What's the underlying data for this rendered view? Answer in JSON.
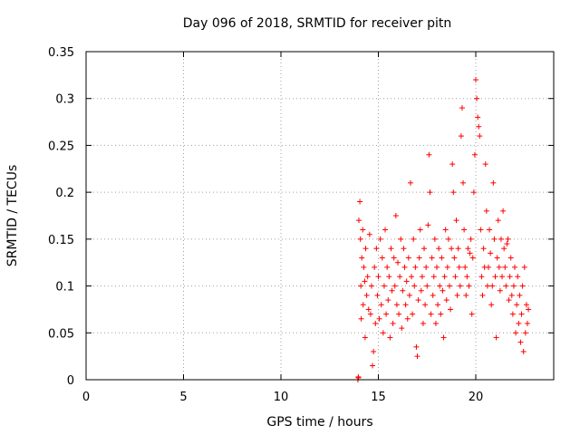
{
  "chart_data": {
    "type": "scatter",
    "title": "Day 096 of 2018, SRMTID for receiver pitn",
    "xlabel": "GPS time / hours",
    "ylabel": "SRMTID / TECUs",
    "xlim": [
      0,
      24
    ],
    "ylim": [
      0,
      0.35
    ],
    "xticks": [
      0,
      5,
      10,
      15,
      20
    ],
    "yticks": [
      0,
      0.05,
      0.1,
      0.15,
      0.2,
      0.25,
      0.3,
      0.35
    ],
    "xtick_labels": [
      "0",
      "5",
      "10",
      "15",
      "20"
    ],
    "ytick_labels": [
      "0",
      "0.05",
      "0.1",
      "0.15",
      "0.2",
      "0.25",
      "0.3",
      "0.35"
    ],
    "grid": true,
    "marker": "+",
    "color": "#ff0000",
    "series": [
      {
        "name": "SRMTID",
        "x": [
          13.95,
          13.97,
          13.98,
          14.0,
          14.05,
          14.08,
          14.1,
          14.12,
          14.15,
          14.2,
          14.22,
          14.25,
          14.3,
          14.32,
          14.35,
          14.4,
          14.45,
          14.5,
          14.55,
          14.6,
          14.65,
          14.7,
          14.75,
          14.8,
          14.85,
          14.9,
          14.95,
          15.0,
          15.05,
          15.1,
          15.15,
          15.2,
          15.25,
          15.3,
          15.35,
          15.4,
          15.45,
          15.5,
          15.55,
          15.6,
          15.65,
          15.7,
          15.75,
          15.8,
          15.85,
          15.9,
          15.95,
          16.0,
          16.05,
          16.1,
          16.15,
          16.2,
          16.25,
          16.3,
          16.35,
          16.4,
          16.45,
          16.5,
          16.55,
          16.6,
          16.65,
          16.7,
          16.75,
          16.8,
          16.85,
          16.9,
          16.95,
          17.0,
          17.05,
          17.1,
          17.15,
          17.2,
          17.25,
          17.3,
          17.35,
          17.4,
          17.45,
          17.5,
          17.55,
          17.6,
          17.65,
          17.7,
          17.75,
          17.8,
          17.85,
          17.9,
          17.95,
          18.0,
          18.05,
          18.1,
          18.15,
          18.2,
          18.25,
          18.3,
          18.35,
          18.4,
          18.45,
          18.5,
          18.55,
          18.6,
          18.65,
          18.7,
          18.75,
          18.8,
          18.85,
          18.9,
          18.95,
          19.0,
          19.05,
          19.1,
          19.15,
          19.2,
          19.25,
          19.3,
          19.35,
          19.4,
          19.45,
          19.5,
          19.55,
          19.6,
          19.65,
          19.7,
          19.75,
          19.8,
          19.85,
          19.9,
          19.95,
          20.0,
          20.05,
          20.1,
          20.15,
          20.2,
          20.25,
          20.3,
          20.35,
          20.4,
          20.45,
          20.5,
          20.55,
          20.6,
          20.65,
          20.7,
          20.75,
          20.8,
          20.85,
          20.9,
          20.95,
          21.0,
          21.05,
          21.1,
          21.15,
          21.2,
          21.25,
          21.3,
          21.35,
          21.4,
          21.45,
          21.5,
          21.55,
          21.6,
          21.65,
          21.7,
          21.75,
          21.8,
          21.85,
          21.9,
          21.95,
          22.0,
          22.05,
          22.1,
          22.15,
          22.2,
          22.25,
          22.3,
          22.35,
          22.4,
          22.45,
          22.5,
          22.55,
          22.6,
          22.65,
          22.7
        ],
        "y": [
          0.0,
          0.003,
          0.002,
          0.17,
          0.19,
          0.15,
          0.1,
          0.065,
          0.13,
          0.16,
          0.08,
          0.12,
          0.105,
          0.045,
          0.14,
          0.09,
          0.11,
          0.075,
          0.155,
          0.07,
          0.1,
          0.015,
          0.03,
          0.12,
          0.06,
          0.14,
          0.09,
          0.11,
          0.065,
          0.15,
          0.08,
          0.13,
          0.05,
          0.1,
          0.16,
          0.07,
          0.12,
          0.085,
          0.11,
          0.045,
          0.14,
          0.095,
          0.06,
          0.13,
          0.1,
          0.175,
          0.08,
          0.125,
          0.07,
          0.11,
          0.15,
          0.055,
          0.095,
          0.14,
          0.12,
          0.08,
          0.105,
          0.065,
          0.13,
          0.09,
          0.21,
          0.11,
          0.07,
          0.15,
          0.1,
          0.12,
          0.035,
          0.025,
          0.085,
          0.13,
          0.16,
          0.095,
          0.11,
          0.06,
          0.14,
          0.08,
          0.12,
          0.1,
          0.165,
          0.24,
          0.2,
          0.07,
          0.13,
          0.09,
          0.11,
          0.15,
          0.06,
          0.12,
          0.08,
          0.14,
          0.1,
          0.07,
          0.13,
          0.095,
          0.045,
          0.11,
          0.16,
          0.085,
          0.12,
          0.15,
          0.1,
          0.075,
          0.14,
          0.23,
          0.2,
          0.13,
          0.11,
          0.17,
          0.09,
          0.14,
          0.12,
          0.1,
          0.26,
          0.29,
          0.21,
          0.16,
          0.12,
          0.09,
          0.11,
          0.14,
          0.1,
          0.135,
          0.15,
          0.07,
          0.13,
          0.2,
          0.24,
          0.32,
          0.3,
          0.28,
          0.27,
          0.26,
          0.16,
          0.11,
          0.09,
          0.14,
          0.12,
          0.23,
          0.18,
          0.1,
          0.12,
          0.16,
          0.135,
          0.08,
          0.1,
          0.21,
          0.15,
          0.11,
          0.045,
          0.13,
          0.17,
          0.12,
          0.095,
          0.15,
          0.11,
          0.18,
          0.14,
          0.12,
          0.1,
          0.145,
          0.15,
          0.085,
          0.11,
          0.13,
          0.09,
          0.07,
          0.1,
          0.12,
          0.05,
          0.08,
          0.11,
          0.06,
          0.09,
          0.04,
          0.07,
          0.1,
          0.03,
          0.12,
          0.05,
          0.08,
          0.06,
          0.075
        ]
      }
    ]
  }
}
